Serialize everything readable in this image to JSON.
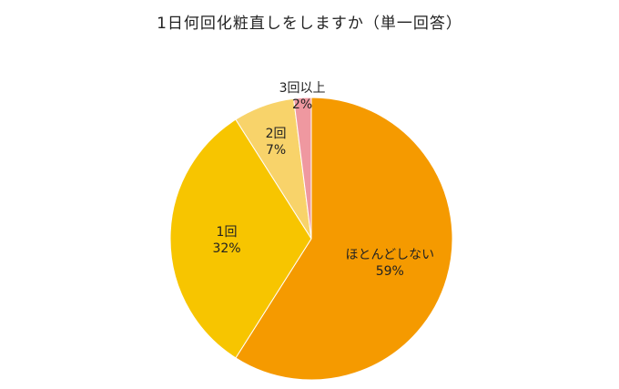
{
  "chart_data": {
    "type": "pie",
    "title": "1日何回化粧直しをしますか（単一回答）",
    "slices": [
      {
        "label": "ほとんどしない",
        "value": 59,
        "value_label": "59%",
        "color": "#f59a00"
      },
      {
        "label": "1回",
        "value": 32,
        "value_label": "32%",
        "color": "#f7c500"
      },
      {
        "label": "2回",
        "value": 7,
        "value_label": "7%",
        "color": "#f8d36a"
      },
      {
        "label": "3回以上",
        "value": 2,
        "value_label": "2%",
        "color": "#ef98a0"
      }
    ],
    "start_angle": "12 o'clock",
    "direction": "clockwise",
    "legend": "none"
  }
}
